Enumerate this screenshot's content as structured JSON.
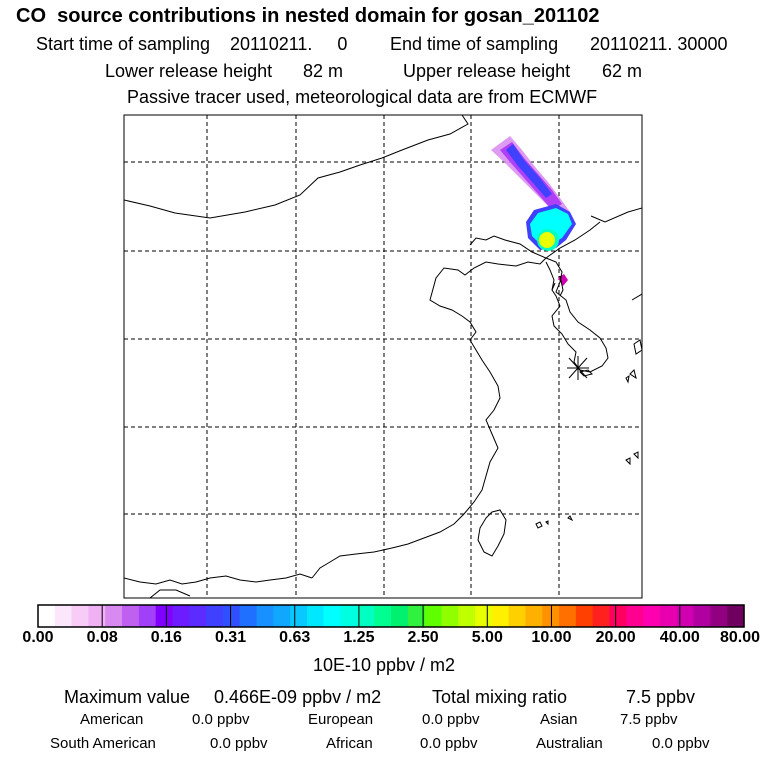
{
  "header": {
    "title": "CO  source contributions in nested domain for gosan_201102",
    "start_label": "Start time of sampling",
    "start_value": "20110211.     0",
    "end_label": "End time of sampling",
    "end_value": "20110211. 30000",
    "lower_label": "Lower release height",
    "lower_value": "82 m",
    "upper_label": "Upper release height",
    "upper_value": "62 m",
    "note": "Passive tracer used, meteorological data are from ECMWF"
  },
  "colorbar": {
    "ticks": [
      "0.00",
      "0.08",
      "0.16",
      "0.31",
      "0.63",
      "1.25",
      "2.50",
      "5.00",
      "10.00",
      "20.00",
      "40.00",
      "80.00"
    ],
    "units": "10E-10 ppbv / m2",
    "colors": [
      "#ffffff",
      "#fbe6fb",
      "#f7ccf7",
      "#f0b0f4",
      "#d88af0",
      "#c060f0",
      "#a040f8",
      "#8000ff",
      "#6c1cff",
      "#5b2bff",
      "#4040ff",
      "#3050ff",
      "#2070ff",
      "#1890ff",
      "#10a8ff",
      "#08c8ff",
      "#00e8ff",
      "#00ffff",
      "#00ffe0",
      "#00ffc0",
      "#00ff90",
      "#00f070",
      "#30f040",
      "#60ff00",
      "#90ff00",
      "#c0ff00",
      "#e8ff00",
      "#fff000",
      "#ffd000",
      "#ffb000",
      "#ff9000",
      "#ff7000",
      "#ff4000",
      "#ff2020",
      "#ff0060",
      "#ff0090",
      "#ff00b0",
      "#e800b0",
      "#d000b0",
      "#b000a0",
      "#900080",
      "#700060"
    ]
  },
  "footer": {
    "max_label": "Maximum value",
    "max_value": "0.466E-09 ppbv / m2",
    "total_label": "Total mixing ratio",
    "total_value": "7.5 ppbv",
    "regions": [
      {
        "name": "American",
        "value": "0.0 ppbv"
      },
      {
        "name": "European",
        "value": "0.0 ppbv"
      },
      {
        "name": "Asian",
        "value": "7.5 ppbv"
      },
      {
        "name": "South American",
        "value": "0.0 ppbv"
      },
      {
        "name": "African",
        "value": "0.0 ppbv"
      },
      {
        "name": "Australian",
        "value": "0.0 ppbv"
      }
    ]
  },
  "map": {
    "receptor_marker": "asterisk-icon"
  }
}
